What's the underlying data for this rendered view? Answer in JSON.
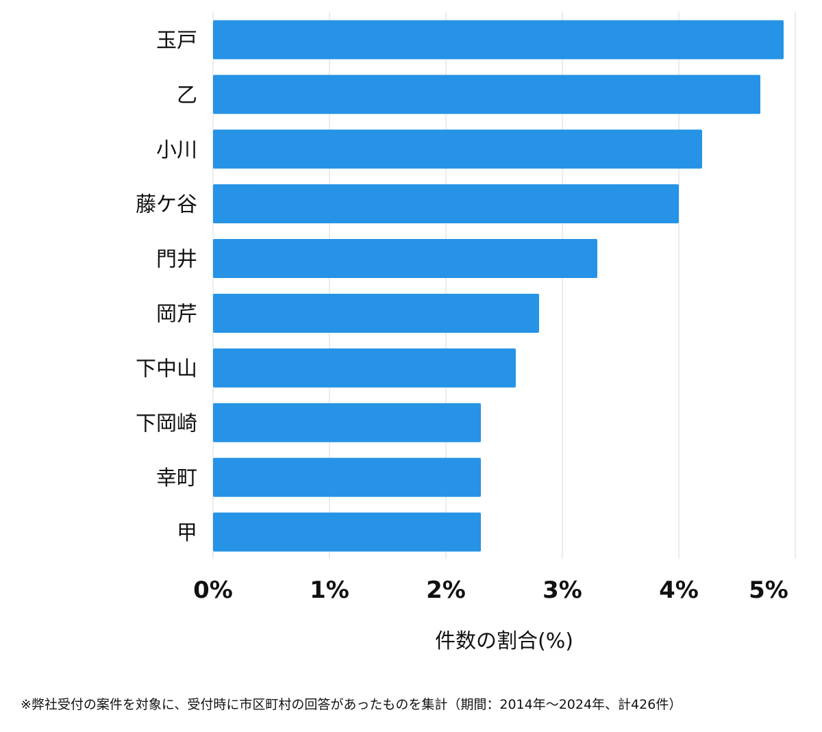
{
  "chart_data": {
    "type": "bar",
    "orientation": "horizontal",
    "categories": [
      "玉戸",
      "乙",
      "小川",
      "藤ケ谷",
      "門井",
      "岡芹",
      "下中山",
      "下岡崎",
      "幸町",
      "甲"
    ],
    "values": [
      4.9,
      4.7,
      4.2,
      4.0,
      3.3,
      2.8,
      2.6,
      2.3,
      2.3,
      2.3
    ],
    "xlim": [
      0,
      5
    ],
    "xticks": [
      "0%",
      "1%",
      "2%",
      "3%",
      "4%",
      "5%"
    ],
    "xlabel": "件数の割合(%)",
    "bar_color": "#2693e6",
    "grid": "vertical"
  },
  "footnote": "※弊社受付の案件を対象に、受付時に市区町村の回答があったものを集計（期間：2014年～2024年、計426件）"
}
